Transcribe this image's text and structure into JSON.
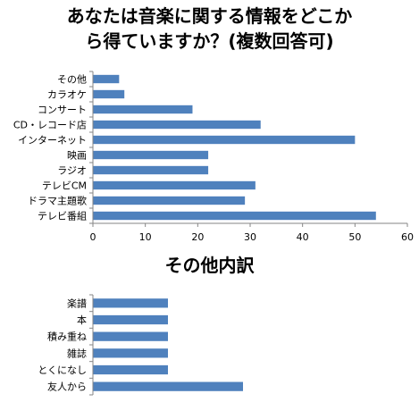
{
  "chart_data": [
    {
      "type": "bar",
      "orientation": "horizontal",
      "title_lines": [
        "あなたは音楽に関する情報をどこか",
        "ら得ていますか？(複数回答可)"
      ],
      "categories": [
        "その他",
        "カラオケ",
        "コンサート",
        "CD・レコード店",
        "インターネット",
        "映画",
        "ラジオ",
        "テレビCM",
        "ドラマ主題歌",
        "テレビ番組"
      ],
      "values": [
        5,
        6,
        19,
        32,
        50,
        22,
        22,
        31,
        29,
        54
      ],
      "xlim": [
        0,
        60
      ],
      "xticks": [
        0,
        10,
        20,
        30,
        40,
        50,
        60
      ],
      "grid": false,
      "bar_color": "#4F81BD"
    },
    {
      "type": "bar",
      "orientation": "horizontal",
      "title": "その他内訳",
      "categories": [
        "楽譜",
        "本",
        "積み重ね",
        "雑誌",
        "とくになし",
        "友人から"
      ],
      "values": [
        1,
        1,
        1,
        1,
        1,
        2
      ],
      "xlim": [
        0,
        4
      ],
      "xticks": [],
      "grid": false,
      "bar_color": "#4F81BD"
    }
  ]
}
